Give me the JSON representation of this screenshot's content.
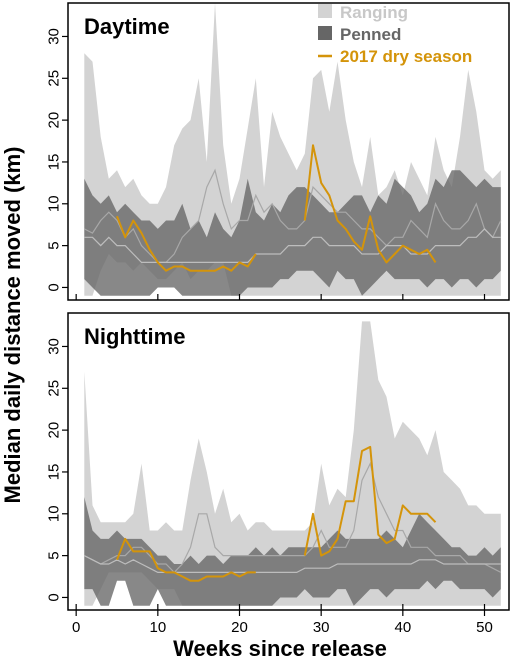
{
  "chart_data": {
    "type": "area",
    "xlabel": "Weeks since release",
    "ylabel": "Median daily distance moved (km)",
    "xlim": [
      -1,
      53
    ],
    "ylim": [
      -1.5,
      34
    ],
    "x_ticks": [
      0,
      10,
      20,
      30,
      40,
      50
    ],
    "y_ticks": [
      0,
      5,
      10,
      15,
      20,
      25,
      30
    ],
    "legend": {
      "position": "top-right",
      "entries": [
        {
          "label": "Ranging",
          "color": "#d3d3d3",
          "shape": "square"
        },
        {
          "label": "Penned",
          "color": "#666666",
          "shape": "square"
        },
        {
          "label": "2017 dry season",
          "color": "#d4940a",
          "shape": "line"
        }
      ]
    },
    "panels": [
      {
        "title": "Daytime",
        "ranging": {
          "x": [
            1,
            2,
            3,
            4,
            5,
            6,
            7,
            8,
            9,
            10,
            11,
            12,
            13,
            14,
            15,
            16,
            17,
            18,
            19,
            20,
            21,
            22,
            23,
            24,
            25,
            26,
            27,
            28,
            29,
            30,
            31,
            32,
            33,
            34,
            35,
            36,
            37,
            38,
            39,
            40,
            41,
            42,
            43,
            44,
            45,
            46,
            47,
            48,
            49,
            50,
            51,
            52
          ],
          "upper": [
            28,
            27,
            18,
            13,
            14,
            12,
            13,
            11,
            10,
            10,
            12,
            17,
            19,
            20,
            25,
            15,
            34,
            17,
            10,
            13,
            19,
            25,
            12,
            21,
            18,
            16,
            14,
            16,
            25,
            26,
            21,
            27,
            20,
            15,
            12,
            18,
            11,
            12,
            14,
            11,
            15,
            13,
            11,
            18,
            14,
            12,
            18,
            26,
            21,
            14,
            13,
            14
          ],
          "lower": [
            -1,
            -1,
            2,
            4,
            3,
            3,
            2,
            3,
            2,
            1,
            1,
            2,
            3,
            1,
            2,
            2,
            3,
            3,
            -1,
            -1,
            -1,
            -1,
            -1,
            -1,
            -1,
            -1,
            -1,
            -1,
            -1,
            -1,
            -1,
            -1,
            -1,
            -1,
            -1,
            -1,
            -1,
            -1,
            -1,
            -1,
            -1,
            -1,
            -1,
            -1,
            -1,
            -1,
            -1,
            -1,
            -1,
            -1,
            -1,
            -1
          ],
          "median": [
            7,
            6.5,
            8,
            9,
            8,
            6,
            7,
            5,
            4,
            3,
            3,
            4,
            6,
            7,
            8,
            12,
            14,
            10,
            7,
            8,
            8,
            11,
            9,
            10,
            8,
            7,
            7,
            8,
            12,
            11,
            10,
            9,
            9,
            8,
            7,
            7,
            6,
            5,
            6,
            6,
            8,
            7,
            6,
            10,
            8,
            7,
            7,
            8,
            10,
            7,
            6,
            8
          ]
        },
        "penned": {
          "x": [
            1,
            2,
            3,
            4,
            5,
            6,
            7,
            8,
            9,
            10,
            11,
            12,
            13,
            14,
            15,
            16,
            17,
            18,
            19,
            20,
            21,
            22,
            23,
            24,
            25,
            26,
            27,
            28,
            29,
            30,
            31,
            32,
            33,
            34,
            35,
            36,
            37,
            38,
            39,
            40,
            41,
            42,
            43,
            44,
            45,
            46,
            47,
            48,
            49,
            50,
            51,
            52
          ],
          "upper": [
            13,
            11,
            10,
            11,
            9,
            10,
            9,
            8,
            8,
            7,
            8,
            8,
            10,
            7,
            8,
            6,
            9,
            7,
            6,
            8,
            13,
            9,
            8,
            10,
            9,
            11,
            12,
            12,
            11,
            10,
            9,
            9,
            10,
            11,
            11,
            9,
            11,
            10,
            13,
            12,
            11,
            9,
            10,
            13,
            12,
            14,
            14,
            13,
            12,
            13,
            12,
            12
          ],
          "lower": [
            1,
            0,
            -1,
            -1,
            -1,
            -1,
            -1,
            -1,
            -1,
            0,
            0,
            0,
            -1,
            -1,
            -1,
            -1,
            -1,
            -1,
            -1,
            -1,
            0,
            0,
            0,
            0,
            1,
            1,
            2,
            2,
            2,
            1,
            0,
            2,
            1,
            1,
            -1,
            0,
            1,
            2,
            1,
            1,
            1,
            1,
            0,
            1,
            1,
            0,
            1,
            1,
            0,
            1,
            1,
            2
          ],
          "median": [
            6,
            6,
            5,
            6,
            5,
            5,
            4,
            3,
            3,
            3,
            3,
            3,
            3,
            3,
            3,
            3,
            3,
            3,
            3,
            3,
            3,
            4,
            4,
            4,
            4,
            5,
            5,
            5,
            6,
            6,
            5,
            5,
            5,
            5,
            4,
            4,
            4,
            5,
            5,
            5,
            4,
            4,
            4,
            5,
            5,
            5,
            5,
            6,
            6,
            7,
            6,
            6
          ]
        },
        "dry_season": {
          "x": [
            5,
            6,
            7,
            8,
            9,
            10,
            11,
            12,
            13,
            14,
            15,
            16,
            17,
            18,
            19,
            20,
            21,
            22,
            28,
            29,
            30,
            31,
            32,
            33,
            34,
            35,
            36,
            37,
            38,
            39,
            40,
            41,
            42,
            43,
            44
          ],
          "y": [
            8.5,
            6,
            8,
            6.5,
            4.5,
            3,
            2,
            2.5,
            2.5,
            2,
            2,
            2,
            2,
            2.5,
            2,
            3,
            2.5,
            4,
            8,
            17,
            12.5,
            11,
            8,
            7,
            5.5,
            4.5,
            8.5,
            4.5,
            3,
            4,
            5,
            4.5,
            4,
            4.5,
            3
          ]
        }
      },
      {
        "title": "Nighttime",
        "ranging": {
          "x": [
            1,
            2,
            3,
            4,
            5,
            6,
            7,
            8,
            9,
            10,
            11,
            12,
            13,
            14,
            15,
            16,
            17,
            18,
            19,
            20,
            21,
            22,
            23,
            24,
            25,
            26,
            27,
            28,
            29,
            30,
            31,
            32,
            33,
            34,
            35,
            36,
            37,
            38,
            39,
            40,
            41,
            42,
            43,
            44,
            45,
            46,
            47,
            48,
            49,
            50,
            51,
            52
          ],
          "upper": [
            27,
            11,
            9,
            9,
            9,
            9,
            10,
            16,
            8,
            8,
            9,
            8,
            8,
            14,
            19,
            15,
            10,
            13,
            9,
            10,
            8,
            9,
            9,
            8,
            8,
            8,
            8,
            8,
            9,
            16,
            11,
            13,
            12,
            20,
            33,
            33,
            26,
            24,
            19,
            21,
            20,
            19,
            17,
            20,
            15,
            14,
            13,
            11,
            11,
            10,
            10,
            10
          ],
          "lower": [
            -1,
            -1,
            1,
            3,
            3,
            3,
            3,
            3,
            2,
            1,
            1,
            1,
            -1,
            -1,
            -1,
            -1,
            -1,
            -1,
            -1,
            -1,
            -1,
            -1,
            -1,
            -1,
            -1,
            -1,
            -1,
            -1,
            -1,
            -1,
            -1,
            -1,
            -1,
            -1,
            -1,
            -1,
            -1,
            -1,
            -1,
            -1,
            -1,
            -1,
            -1,
            -1,
            -1,
            -1,
            -1,
            -1,
            -1,
            -1,
            -1,
            -1
          ],
          "median": [
            5,
            4.5,
            4,
            4.5,
            5,
            5,
            6,
            6,
            5,
            4,
            4,
            3,
            4,
            6,
            10,
            10,
            6,
            5,
            5,
            5,
            5,
            5,
            5,
            5,
            5,
            5,
            5,
            5,
            6,
            8,
            6,
            6,
            6,
            8,
            14,
            16,
            12,
            10,
            8,
            8,
            6,
            6,
            6,
            5,
            5,
            5,
            5,
            4,
            4,
            4,
            3.5,
            3
          ]
        },
        "penned": {
          "x": [
            1,
            2,
            3,
            4,
            5,
            6,
            7,
            8,
            9,
            10,
            11,
            12,
            13,
            14,
            15,
            16,
            17,
            18,
            19,
            20,
            21,
            22,
            23,
            24,
            25,
            26,
            27,
            28,
            29,
            30,
            31,
            32,
            33,
            34,
            35,
            36,
            37,
            38,
            39,
            40,
            41,
            42,
            43,
            44,
            45,
            46,
            47,
            48,
            49,
            50,
            51,
            52
          ],
          "upper": [
            12,
            8,
            7,
            7,
            8,
            7,
            7,
            7,
            6,
            5,
            5,
            4,
            4,
            5,
            4,
            5,
            5,
            4,
            5,
            5,
            5,
            6,
            5,
            6,
            5,
            6,
            6,
            6,
            6,
            6,
            7,
            8,
            7,
            7,
            7,
            7,
            7,
            8,
            7,
            6,
            8,
            10,
            9,
            8,
            7,
            6,
            6,
            5,
            5,
            6,
            5,
            6
          ],
          "lower": [
            1,
            1,
            -1,
            -1,
            2,
            2,
            -1,
            -1,
            -1,
            1,
            -1,
            -1,
            -1,
            -1,
            -1,
            -1,
            -1,
            -1,
            -1,
            -1,
            -1,
            -1,
            -1,
            -1,
            0,
            0,
            0,
            1,
            0,
            0,
            0,
            1,
            1,
            -1,
            0,
            1,
            1,
            0,
            1,
            1,
            1,
            1,
            2,
            1,
            2,
            2,
            1,
            1,
            1,
            1,
            0,
            1
          ],
          "median": [
            5,
            4.5,
            4,
            4,
            4.5,
            4,
            4.5,
            4,
            3.5,
            3,
            3,
            3,
            3,
            3,
            3,
            3,
            3,
            3,
            3,
            3,
            3,
            3,
            3,
            3,
            3,
            3,
            3,
            3.5,
            3.5,
            3.5,
            3.5,
            4,
            4,
            4,
            4,
            4,
            4,
            4,
            4,
            4,
            4,
            4.5,
            4.5,
            4.5,
            4,
            4,
            4,
            4,
            4,
            4,
            4,
            4
          ]
        },
        "dry_season": {
          "x": [
            5,
            6,
            7,
            8,
            9,
            10,
            11,
            12,
            13,
            14,
            15,
            16,
            17,
            18,
            19,
            20,
            21,
            22,
            28,
            29,
            30,
            31,
            32,
            33,
            34,
            35,
            36,
            37,
            38,
            39,
            40,
            41,
            42,
            43,
            44
          ],
          "y": [
            4.5,
            7,
            5.5,
            5.5,
            5.5,
            3.5,
            3,
            3,
            2.5,
            2,
            2,
            2.5,
            2.5,
            2.5,
            3,
            2.5,
            3,
            3,
            5,
            10,
            5,
            5.5,
            7,
            11.5,
            11.5,
            17.5,
            18,
            7.5,
            6.5,
            7,
            11,
            10,
            10,
            10,
            9
          ]
        }
      }
    ]
  }
}
